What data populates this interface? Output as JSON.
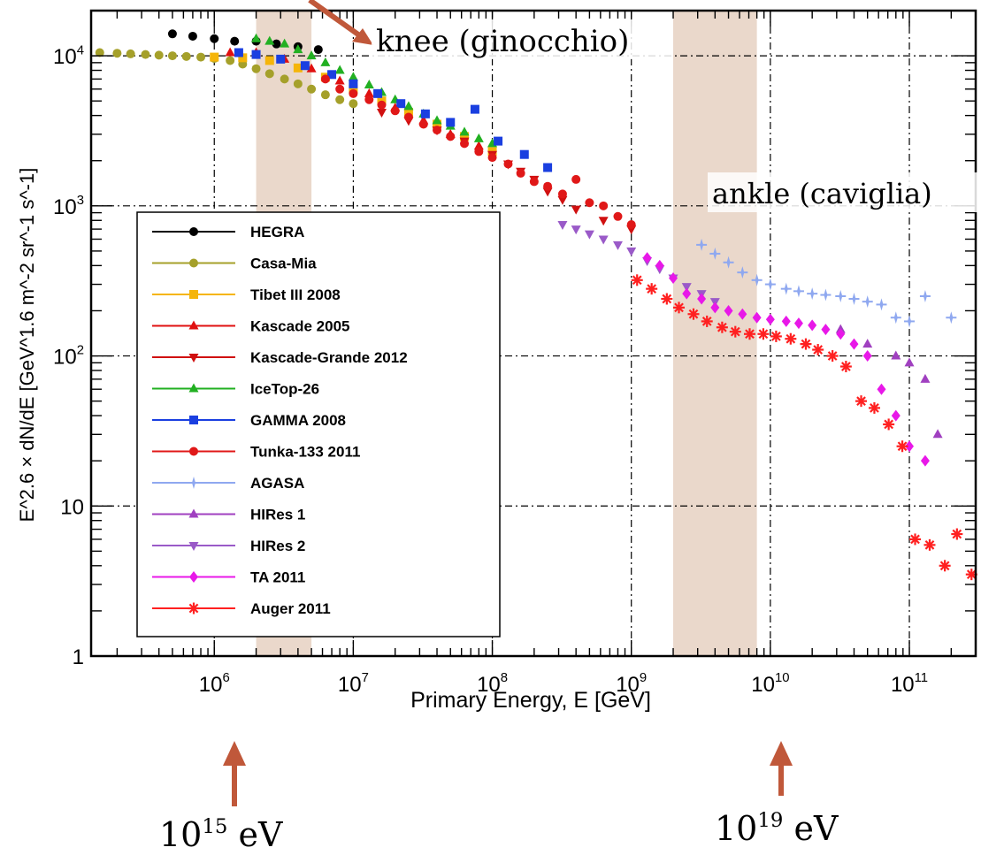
{
  "chart_data": {
    "type": "scatter",
    "xlabel": "Primary Energy, E [GeV]",
    "ylabel": "E^2.6 × dN/dE [GeV^1.6 m^-2 sr^-1 s^-1]",
    "x_scale": "log",
    "y_scale": "log",
    "xlim": [
      130000.0,
      300000000000.0
    ],
    "ylim": [
      1,
      20000
    ],
    "grid": true,
    "legend_position": "left-middle",
    "x_ticks": [
      "10^6",
      "10^7",
      "10^8",
      "10^9",
      "10^10",
      "10^11"
    ],
    "y_ticks": [
      "1",
      "10",
      "10^2",
      "10^3",
      "10^4"
    ],
    "shaded_bands": [
      {
        "from": 2000000.0,
        "to": 5000000.0
      },
      {
        "from": 2000000000.0,
        "to": 8000000000.0
      }
    ],
    "annotations": {
      "knee": "knee (ginocchio)",
      "ankle": "ankle (caviglia)",
      "arrow_left": "10^15 eV",
      "arrow_right": "10^19 eV"
    },
    "series": [
      {
        "name": "HEGRA",
        "color": "#000000",
        "marker": "circle",
        "points": [
          [
            500000.0,
            14000
          ],
          [
            700000.0,
            13500
          ],
          [
            1000000.0,
            13000
          ],
          [
            1400000.0,
            12500
          ],
          [
            2000000.0,
            12500
          ],
          [
            2800000.0,
            12000
          ],
          [
            4000000.0,
            11500
          ],
          [
            5600000.0,
            11000
          ]
        ]
      },
      {
        "name": "Casa-Mia",
        "color": "#a5a02a",
        "marker": "circle",
        "points": [
          [
            150000.0,
            10500
          ],
          [
            200000.0,
            10400
          ],
          [
            250000.0,
            10300
          ],
          [
            320000.0,
            10200
          ],
          [
            400000.0,
            10100
          ],
          [
            500000.0,
            10000
          ],
          [
            630000.0,
            9900
          ],
          [
            800000.0,
            9800
          ],
          [
            1000000.0,
            9600
          ],
          [
            1300000.0,
            9300
          ],
          [
            1600000.0,
            8800
          ],
          [
            2000000.0,
            8200
          ],
          [
            2500000.0,
            7600
          ],
          [
            3200000.0,
            7000
          ],
          [
            4000000.0,
            6500
          ],
          [
            5000000.0,
            6000
          ],
          [
            6300000.0,
            5500
          ],
          [
            8000000.0,
            5100
          ],
          [
            10000000.0,
            4800
          ]
        ]
      },
      {
        "name": "Tibet III 2008",
        "color": "#f5b50a",
        "marker": "square",
        "points": [
          [
            1000000.0,
            9800
          ],
          [
            1600000.0,
            9700
          ],
          [
            2500000.0,
            9300
          ],
          [
            4000000.0,
            8300
          ],
          [
            6300000.0,
            7200
          ],
          [
            10000000.0,
            6000
          ],
          [
            16000000.0,
            5000
          ],
          [
            25000000.0,
            4200
          ],
          [
            40000000.0,
            3500
          ],
          [
            63000000.0,
            2900
          ],
          [
            100000000.0,
            2300
          ]
        ]
      },
      {
        "name": "Kascade 2005",
        "color": "#e01010",
        "marker": "triangle-up",
        "points": [
          [
            1300000.0,
            10500
          ],
          [
            2000000.0,
            10500
          ],
          [
            3200000.0,
            9500
          ],
          [
            5000000.0,
            8200
          ],
          [
            8000000.0,
            6800
          ],
          [
            13000000.0,
            5600
          ],
          [
            20000000.0,
            4500
          ],
          [
            32000000.0,
            3700
          ],
          [
            50000000.0,
            3000
          ],
          [
            80000000.0,
            2500
          ]
        ]
      },
      {
        "name": "Kascade-Grande 2012",
        "color": "#d01010",
        "marker": "triangle-down",
        "points": [
          [
            16000000.0,
            4200
          ],
          [
            25000000.0,
            3700
          ],
          [
            40000000.0,
            3200
          ],
          [
            63000000.0,
            2700
          ],
          [
            100000000.0,
            2200
          ],
          [
            130000000.0,
            1900
          ],
          [
            160000000.0,
            1700
          ],
          [
            200000000.0,
            1500
          ],
          [
            250000000.0,
            1250
          ],
          [
            320000000.0,
            1100
          ],
          [
            400000000.0,
            950
          ],
          [
            630000000.0,
            800
          ],
          [
            1000000000.0,
            700
          ]
        ]
      },
      {
        "name": "IceTop-26",
        "color": "#22b022",
        "marker": "triangle-up",
        "points": [
          [
            2000000.0,
            13000
          ],
          [
            2500000.0,
            12500
          ],
          [
            3200000.0,
            12000
          ],
          [
            4000000.0,
            11000
          ],
          [
            5000000.0,
            10000
          ],
          [
            6300000.0,
            9000
          ],
          [
            8000000.0,
            8000
          ],
          [
            10000000.0,
            7200
          ],
          [
            13000000.0,
            6400
          ],
          [
            16000000.0,
            5700
          ],
          [
            20000000.0,
            5100
          ],
          [
            25000000.0,
            4600
          ],
          [
            32000000.0,
            4100
          ],
          [
            40000000.0,
            3700
          ],
          [
            50000000.0,
            3400
          ],
          [
            63000000.0,
            3100
          ],
          [
            80000000.0,
            2800
          ],
          [
            100000000.0,
            2600
          ]
        ]
      },
      {
        "name": "GAMMA 2008",
        "color": "#1a3fe0",
        "marker": "square",
        "points": [
          [
            1500000.0,
            10500
          ],
          [
            2000000.0,
            10200
          ],
          [
            3000000.0,
            9500
          ],
          [
            4500000.0,
            8600
          ],
          [
            7000000.0,
            7500
          ],
          [
            10000000.0,
            6500
          ],
          [
            15000000.0,
            5600
          ],
          [
            22000000.0,
            4800
          ],
          [
            33000000.0,
            4100
          ],
          [
            50000000.0,
            3600
          ],
          [
            75000000.0,
            4400
          ],
          [
            110000000.0,
            2700
          ],
          [
            170000000.0,
            2200
          ],
          [
            250000000.0,
            1800
          ]
        ]
      },
      {
        "name": "Tunka-133 2011",
        "color": "#e01818",
        "marker": "circle",
        "points": [
          [
            6300000.0,
            7000
          ],
          [
            8000000.0,
            6000
          ],
          [
            10000000.0,
            5600
          ],
          [
            13000000.0,
            5100
          ],
          [
            16000000.0,
            4700
          ],
          [
            20000000.0,
            4300
          ],
          [
            25000000.0,
            3900
          ],
          [
            32000000.0,
            3500
          ],
          [
            40000000.0,
            3200
          ],
          [
            50000000.0,
            2900
          ],
          [
            63000000.0,
            2600
          ],
          [
            80000000.0,
            2300
          ],
          [
            100000000.0,
            2100
          ],
          [
            130000000.0,
            1900
          ],
          [
            160000000.0,
            1650
          ],
          [
            200000000.0,
            1450
          ],
          [
            250000000.0,
            1350
          ],
          [
            320000000.0,
            1200
          ],
          [
            400000000.0,
            1500
          ],
          [
            500000000.0,
            1050
          ],
          [
            630000000.0,
            1000
          ],
          [
            800000000.0,
            850
          ],
          [
            1000000000.0,
            750
          ]
        ]
      },
      {
        "name": "AGASA",
        "color": "#8fa8f0",
        "marker": "star",
        "points": [
          [
            3200000000.0,
            550
          ],
          [
            4000000000.0,
            480
          ],
          [
            5000000000.0,
            420
          ],
          [
            6300000000.0,
            360
          ],
          [
            8000000000.0,
            320
          ],
          [
            10000000000.0,
            300
          ],
          [
            13000000000.0,
            280
          ],
          [
            16000000000.0,
            270
          ],
          [
            20000000000.0,
            260
          ],
          [
            25000000000.0,
            255
          ],
          [
            32000000000.0,
            250
          ],
          [
            40000000000.0,
            240
          ],
          [
            50000000000.0,
            230
          ],
          [
            63000000000.0,
            220
          ],
          [
            80000000000.0,
            180
          ],
          [
            100000000000.0,
            170
          ],
          [
            130000000000.0,
            250
          ],
          [
            200000000000.0,
            180
          ]
        ]
      },
      {
        "name": "HIRes 1",
        "color": "#a040c0",
        "marker": "triangle-up",
        "points": [
          [
            32000000000.0,
            150
          ],
          [
            50000000000.0,
            120
          ],
          [
            80000000000.0,
            100
          ],
          [
            100000000000.0,
            90
          ],
          [
            130000000000.0,
            70
          ],
          [
            160000000000.0,
            30
          ]
        ]
      },
      {
        "name": "HIRes 2",
        "color": "#9a5ac8",
        "marker": "triangle-down",
        "points": [
          [
            320000000.0,
            750
          ],
          [
            400000000.0,
            700
          ],
          [
            500000000.0,
            650
          ],
          [
            630000000.0,
            600
          ],
          [
            800000000.0,
            550
          ],
          [
            1000000000.0,
            500
          ],
          [
            1300000000.0,
            430
          ],
          [
            1600000000.0,
            380
          ],
          [
            2000000000.0,
            330
          ],
          [
            2500000000.0,
            290
          ],
          [
            3200000000.0,
            260
          ],
          [
            4000000000.0,
            230
          ]
        ]
      },
      {
        "name": "TA 2011",
        "color": "#e818e8",
        "marker": "diamond",
        "points": [
          [
            1300000000.0,
            450
          ],
          [
            1600000000.0,
            400
          ],
          [
            2000000000.0,
            330
          ],
          [
            2500000000.0,
            260
          ],
          [
            3200000000.0,
            240
          ],
          [
            4000000000.0,
            210
          ],
          [
            5000000000.0,
            200
          ],
          [
            6300000000.0,
            190
          ],
          [
            8000000000.0,
            180
          ],
          [
            10000000000.0,
            175
          ],
          [
            13000000000.0,
            170
          ],
          [
            16000000000.0,
            165
          ],
          [
            20000000000.0,
            160
          ],
          [
            25000000000.0,
            150
          ],
          [
            32000000000.0,
            140
          ],
          [
            40000000000.0,
            120
          ],
          [
            50000000000.0,
            100
          ],
          [
            63000000000.0,
            60
          ],
          [
            80000000000.0,
            40
          ],
          [
            100000000000.0,
            25
          ],
          [
            130000000000.0,
            20
          ]
        ]
      },
      {
        "name": "Auger 2011",
        "color": "#ff2020",
        "marker": "asterisk",
        "points": [
          [
            1100000000.0,
            320
          ],
          [
            1400000000.0,
            280
          ],
          [
            1800000000.0,
            240
          ],
          [
            2200000000.0,
            210
          ],
          [
            2800000000.0,
            190
          ],
          [
            3500000000.0,
            170
          ],
          [
            4500000000.0,
            155
          ],
          [
            5600000000.0,
            145
          ],
          [
            7100000000.0,
            140
          ],
          [
            8900000000.0,
            140
          ],
          [
            11000000000.0,
            135
          ],
          [
            14000000000.0,
            130
          ],
          [
            18000000000.0,
            120
          ],
          [
            22000000000.0,
            110
          ],
          [
            28000000000.0,
            100
          ],
          [
            35000000000.0,
            85
          ],
          [
            45000000000.0,
            50
          ],
          [
            56000000000.0,
            45
          ],
          [
            71000000000.0,
            35
          ],
          [
            89000000000.0,
            25
          ],
          [
            110000000000.0,
            6
          ],
          [
            140000000000.0,
            5.5
          ],
          [
            180000000000.0,
            4
          ],
          [
            220000000000.0,
            6.5
          ],
          [
            280000000000.0,
            3.5
          ]
        ]
      }
    ]
  }
}
